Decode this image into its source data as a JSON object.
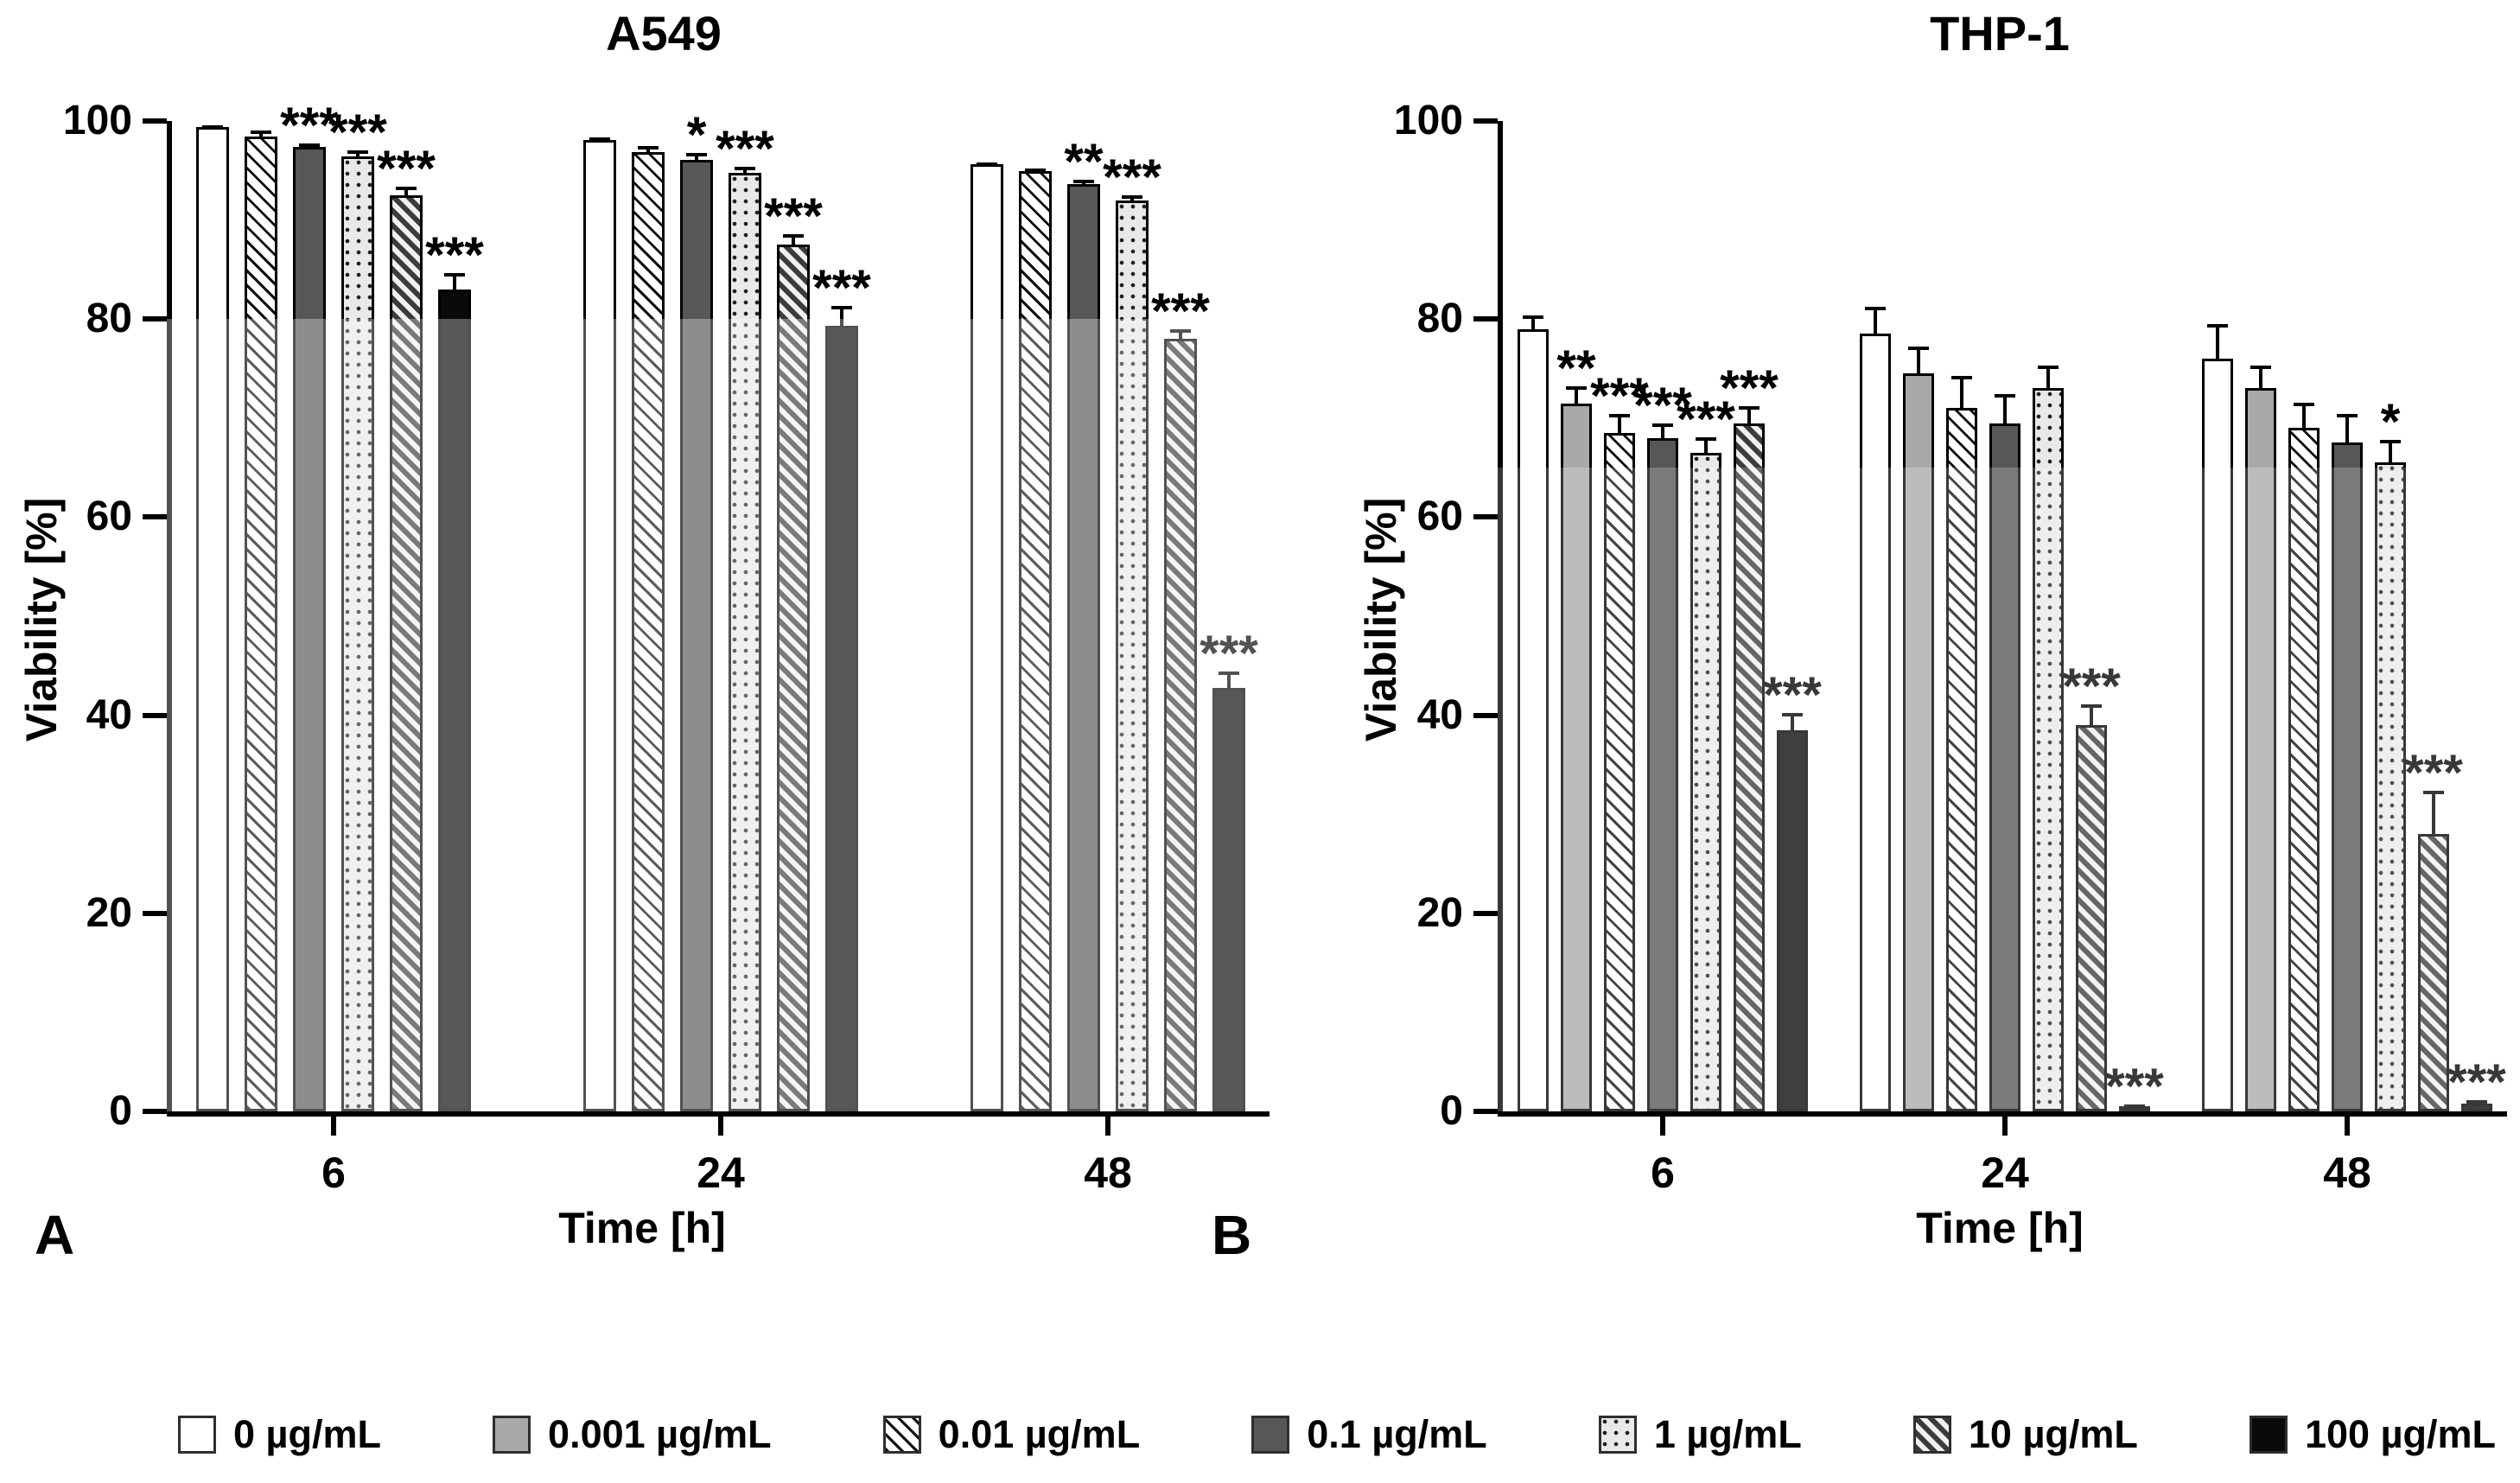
{
  "panel_letters": [
    "A",
    "B"
  ],
  "colors": {
    "axis": "#000000",
    "light_gray_fill": "#a9a9a9",
    "dark_gray_fill": "#57575a",
    "dot_fill_bg": "#e9e9e9",
    "black_fill": "#0a0a0a"
  },
  "legend": {
    "items": [
      {
        "label": "0 µg/mL",
        "pattern": "white"
      },
      {
        "label": "0.001 µg/mL",
        "pattern": "lightgray"
      },
      {
        "label": "0.01 µg/mL",
        "pattern": "hatch-thin"
      },
      {
        "label": "0.1 µg/mL",
        "pattern": "darkgray"
      },
      {
        "label": "1 µg/mL",
        "pattern": "dots"
      },
      {
        "label": "10 µg/mL",
        "pattern": "hatch-thick"
      },
      {
        "label": "100 µg/mL",
        "pattern": "black"
      }
    ]
  },
  "chart_data": [
    {
      "type": "bar",
      "panel": "A",
      "title": "A549",
      "xlabel": "Time [h]",
      "ylabel": "Viability [%]",
      "ylim": [
        0,
        100
      ],
      "yticks": [
        0,
        20,
        40,
        60,
        80,
        100
      ],
      "grid": false,
      "legend_position": "bottom",
      "categories": [
        "6",
        "24",
        "48"
      ],
      "series": [
        {
          "name": "0 µg/mL",
          "pattern": "white",
          "values": [
            99.4,
            98.1,
            95.6
          ],
          "errors": [
            0.4,
            0.5,
            0.5
          ],
          "sig": [
            "",
            "",
            ""
          ]
        },
        {
          "name": "0.01 µg/mL",
          "pattern": "hatch-thin",
          "values": [
            98.4,
            96.9,
            94.9
          ],
          "errors": [
            0.9,
            0.8,
            0.6
          ],
          "sig": [
            "",
            "",
            ""
          ]
        },
        {
          "name": "0.1 µg/mL",
          "pattern": "darkgray",
          "values": [
            97.4,
            96.1,
            93.6
          ],
          "errors": [
            0.6,
            0.9,
            0.7
          ],
          "sig": [
            "***",
            "*",
            "**"
          ]
        },
        {
          "name": "1 µg/mL",
          "pattern": "dots",
          "values": [
            96.4,
            94.8,
            92.0
          ],
          "errors": [
            0.9,
            0.8,
            0.8
          ],
          "sig": [
            "***",
            "***",
            "***"
          ]
        },
        {
          "name": "10 µg/mL",
          "pattern": "hatch-thick",
          "values": [
            92.5,
            87.5,
            78.0
          ],
          "errors": [
            1.1,
            1.3,
            1.2
          ],
          "sig": [
            "***",
            "***",
            "***"
          ]
        },
        {
          "name": "100 µg/mL",
          "pattern": "black",
          "values": [
            83.0,
            79.3,
            42.8
          ],
          "errors": [
            1.9,
            2.3,
            1.9
          ],
          "sig": [
            "***",
            "***",
            "***"
          ]
        }
      ]
    },
    {
      "type": "bar",
      "panel": "B",
      "title": "THP-1",
      "xlabel": "Time [h]",
      "ylabel": "Viability [%]",
      "ylim": [
        0,
        100
      ],
      "yticks": [
        0,
        20,
        40,
        60,
        80,
        100
      ],
      "grid": false,
      "legend_position": "bottom",
      "categories": [
        "6",
        "24",
        "48"
      ],
      "series": [
        {
          "name": "0 µg/mL",
          "pattern": "white",
          "values": [
            79.0,
            78.5,
            76.0
          ],
          "errors": [
            1.6,
            3.0,
            3.8
          ],
          "sig": [
            "",
            "",
            ""
          ]
        },
        {
          "name": "0.001 µg/mL",
          "pattern": "lightgray",
          "values": [
            71.5,
            74.5,
            73.0
          ],
          "errors": [
            2.0,
            3.0,
            2.6
          ],
          "sig": [
            "**",
            "",
            ""
          ]
        },
        {
          "name": "0.01 µg/mL",
          "pattern": "hatch-thin",
          "values": [
            68.5,
            71.0,
            69.0
          ],
          "errors": [
            2.2,
            3.5,
            2.8
          ],
          "sig": [
            "***",
            "",
            ""
          ]
        },
        {
          "name": "0.1 µg/mL",
          "pattern": "darkgray",
          "values": [
            68.0,
            69.5,
            67.5
          ],
          "errors": [
            1.7,
            3.2,
            3.2
          ],
          "sig": [
            "***",
            "",
            ""
          ]
        },
        {
          "name": "1 µg/mL",
          "pattern": "dots",
          "values": [
            66.5,
            73.0,
            65.5
          ],
          "errors": [
            1.8,
            2.6,
            2.6
          ],
          "sig": [
            "***",
            "",
            "*"
          ]
        },
        {
          "name": "10 µg/mL",
          "pattern": "hatch-thick",
          "values": [
            69.5,
            39.0,
            28.0
          ],
          "errors": [
            2.0,
            2.4,
            4.6
          ],
          "sig": [
            "***",
            "***",
            "***"
          ]
        },
        {
          "name": "100 µg/mL",
          "pattern": "black",
          "values": [
            38.5,
            0.4,
            0.8
          ],
          "errors": [
            2.0,
            0.4,
            0.6
          ],
          "sig": [
            "***",
            "***",
            "***"
          ]
        }
      ]
    }
  ]
}
